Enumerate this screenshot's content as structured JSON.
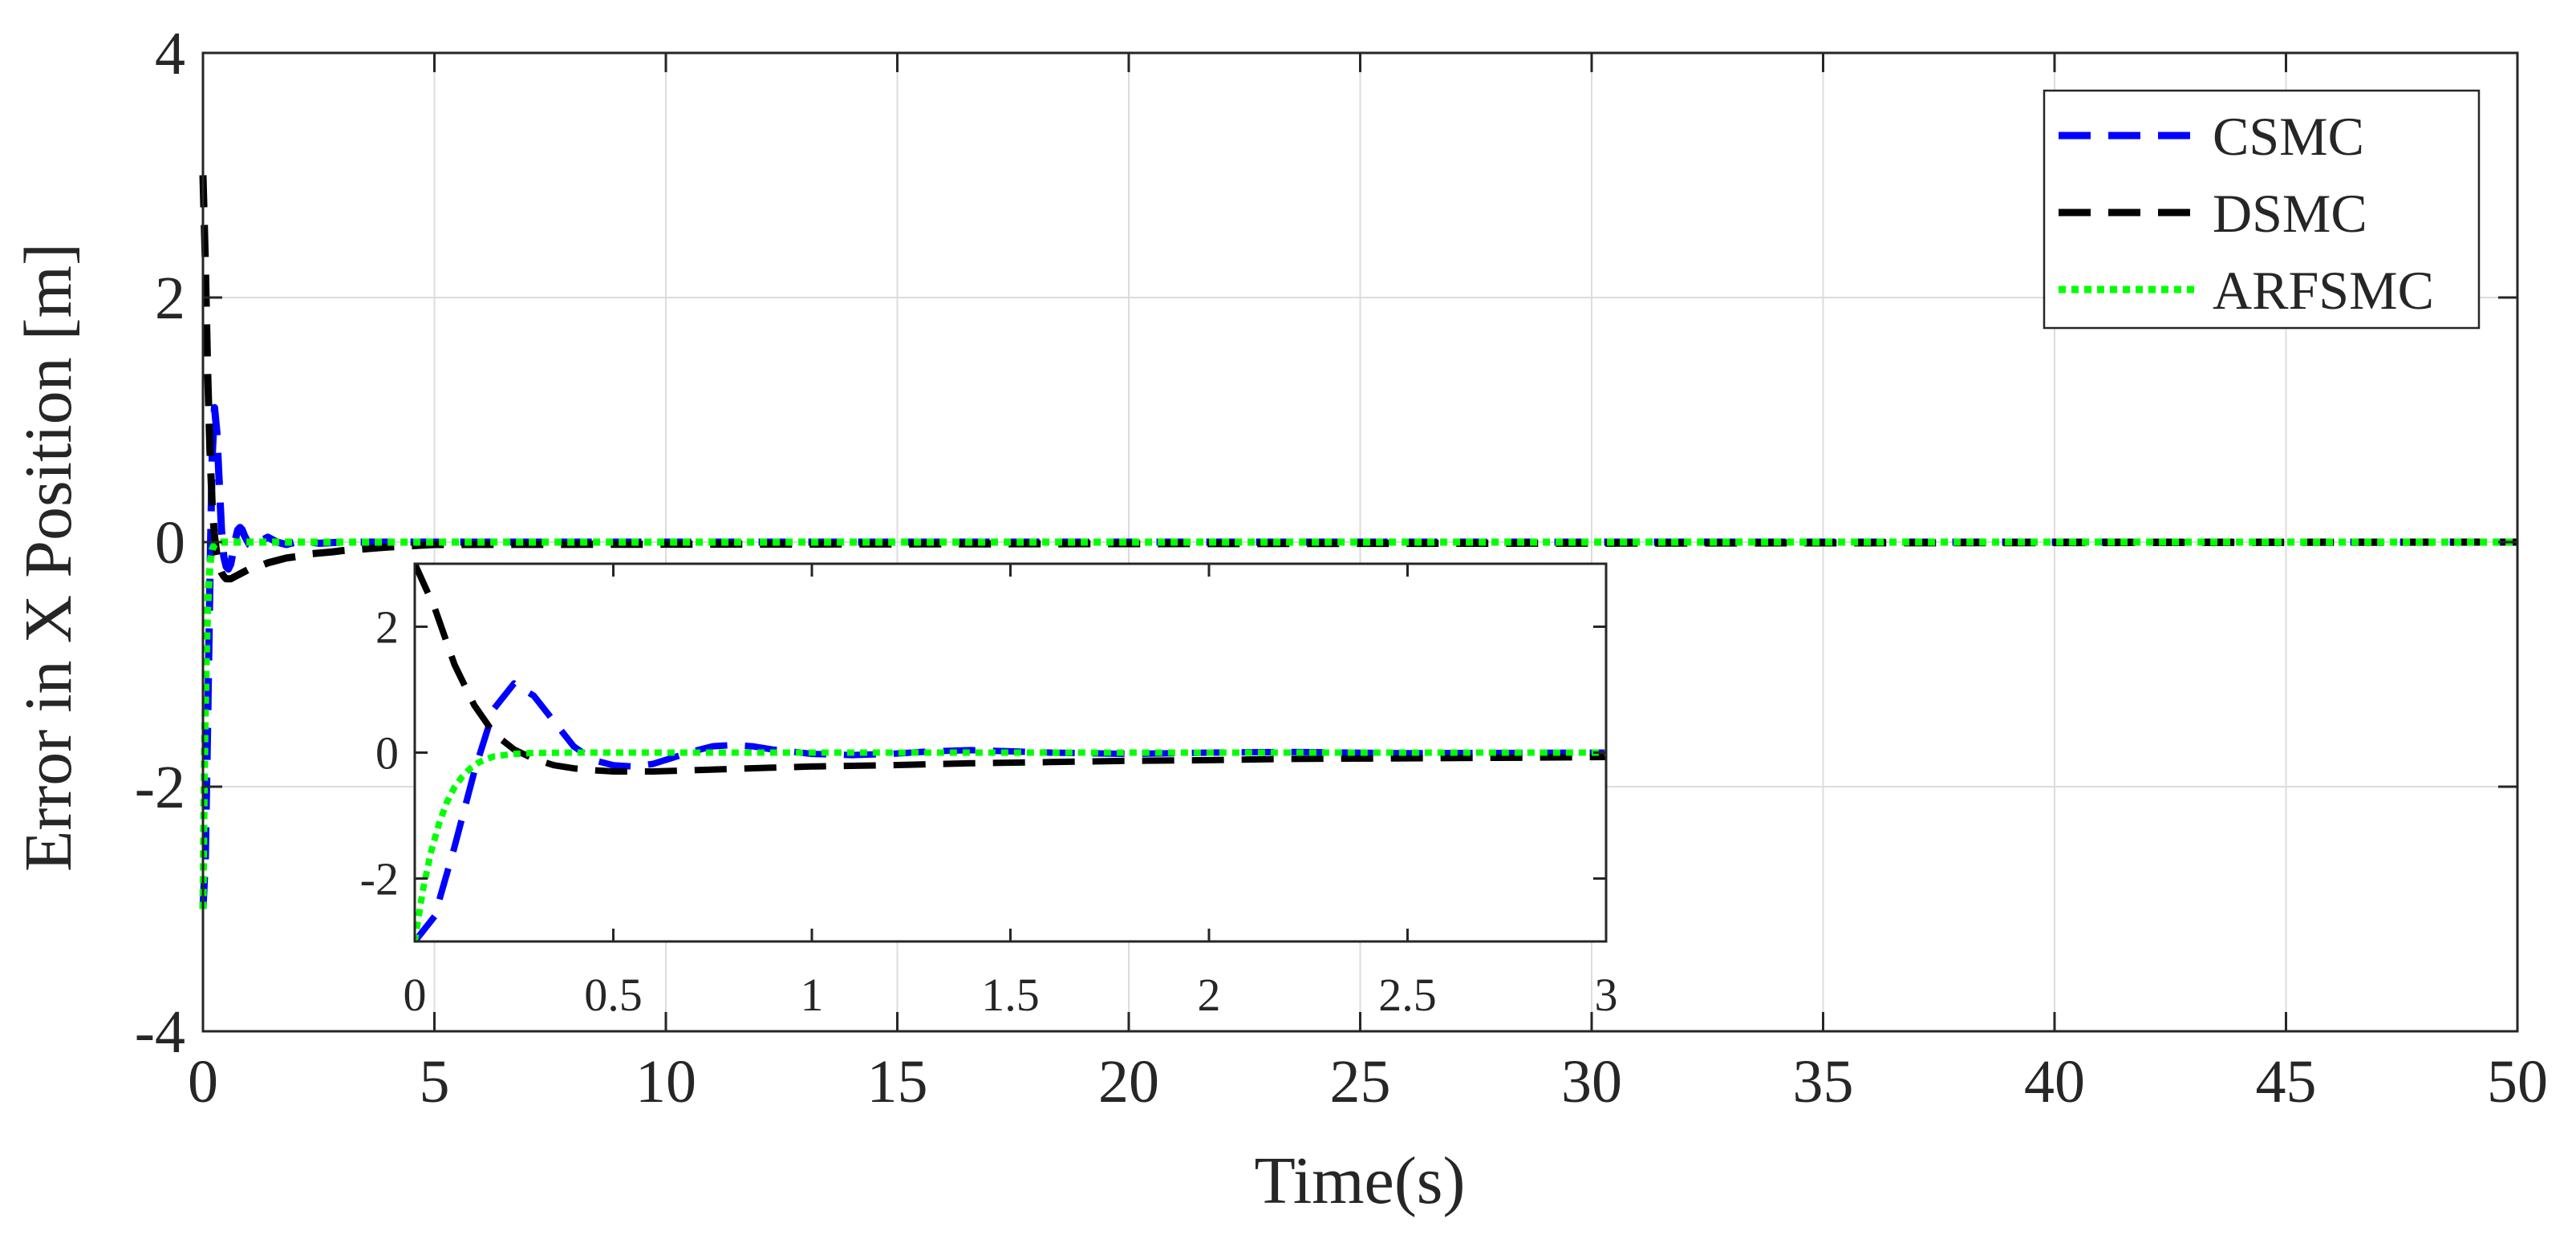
{
  "chart_data": {
    "type": "line",
    "xlabel": "Time(s)",
    "ylabel": "Error in X Position [m]",
    "xlim": [
      0,
      50
    ],
    "ylim": [
      -4,
      4
    ],
    "xticks": [
      "0",
      "5",
      "10",
      "15",
      "20",
      "25",
      "30",
      "35",
      "40",
      "45",
      "50"
    ],
    "yticks": [
      "4",
      "2",
      "0",
      "-2",
      "-4"
    ],
    "grid": true,
    "legend_position": "top-right",
    "series": [
      {
        "name": "CSMC",
        "color": "#0000ff",
        "style": "dashed",
        "x": [
          0,
          0.05,
          0.1,
          0.15,
          0.2,
          0.25,
          0.3,
          0.35,
          0.4,
          0.45,
          0.5,
          0.55,
          0.6,
          0.65,
          0.7,
          0.75,
          0.8,
          0.85,
          0.9,
          1.0,
          1.1,
          1.2,
          1.3,
          1.4,
          1.5,
          1.6,
          1.8,
          2.0,
          2.2,
          2.5,
          3.0,
          4.0,
          50
        ],
        "y": [
          -3.0,
          -2.6,
          -1.5,
          -0.3,
          0.7,
          1.1,
          0.9,
          0.5,
          0.1,
          -0.12,
          -0.2,
          -0.22,
          -0.18,
          -0.08,
          0.02,
          0.1,
          0.12,
          0.1,
          0.05,
          -0.02,
          -0.04,
          -0.02,
          0.02,
          0.04,
          0.02,
          0.0,
          -0.02,
          0.0,
          0.01,
          -0.01,
          0.0,
          0.0,
          0.0
        ]
      },
      {
        "name": "DSMC",
        "color": "#000000",
        "style": "dashed",
        "x": [
          0,
          0.05,
          0.1,
          0.15,
          0.2,
          0.25,
          0.3,
          0.35,
          0.4,
          0.45,
          0.5,
          0.6,
          0.7,
          0.8,
          0.9,
          1.0,
          1.2,
          1.4,
          1.6,
          1.8,
          2.0,
          2.2,
          2.5,
          2.8,
          3.0,
          4.0,
          5.0,
          50
        ],
        "y": [
          3.0,
          2.3,
          1.4,
          0.75,
          0.3,
          0.05,
          -0.1,
          -0.2,
          -0.25,
          -0.28,
          -0.3,
          -0.3,
          -0.28,
          -0.26,
          -0.24,
          -0.22,
          -0.2,
          -0.17,
          -0.15,
          -0.13,
          -0.12,
          -0.1,
          -0.09,
          -0.08,
          -0.07,
          -0.04,
          -0.02,
          0.0
        ]
      },
      {
        "name": "ARFSMC",
        "color": "#00ff00",
        "style": "dotted",
        "x": [
          0,
          0.02,
          0.04,
          0.06,
          0.08,
          0.1,
          0.12,
          0.14,
          0.16,
          0.18,
          0.2,
          0.25,
          0.3,
          0.4,
          0.5,
          1.0,
          2.0,
          3.0,
          50
        ],
        "y": [
          -3.0,
          -2.2,
          -1.6,
          -1.15,
          -0.8,
          -0.55,
          -0.38,
          -0.25,
          -0.16,
          -0.1,
          -0.06,
          -0.02,
          -0.005,
          0.0,
          0.0,
          0.0,
          0.0,
          0.0,
          0.0
        ]
      }
    ],
    "inset": {
      "xlim": [
        0,
        3
      ],
      "ylim": [
        -3,
        3
      ],
      "xticks": [
        "0",
        "0.5",
        "1",
        "1.5",
        "2",
        "2.5",
        "3"
      ],
      "yticks": [
        "2",
        "0",
        "-2"
      ],
      "grid": false
    }
  }
}
